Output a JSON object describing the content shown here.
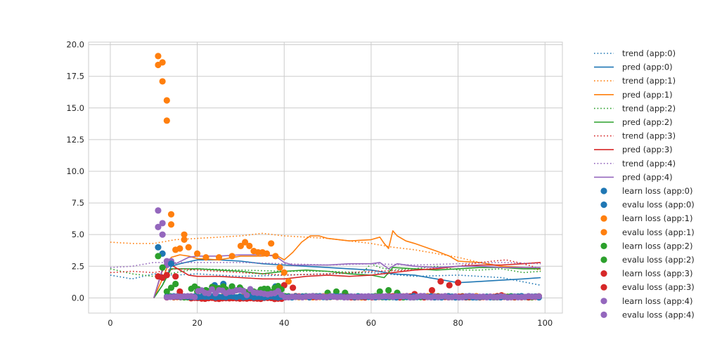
{
  "chart_data": {
    "type": "line",
    "title": "",
    "xlabel": "",
    "ylabel": "",
    "xlim": [
      -5,
      104
    ],
    "ylim": [
      -1.2,
      20.2
    ],
    "x_ticks": [
      0,
      20,
      40,
      60,
      80,
      100
    ],
    "y_ticks": [
      0.0,
      2.5,
      5.0,
      7.5,
      10.0,
      12.5,
      15.0,
      17.5,
      20.0
    ],
    "x_tick_labels": [
      "0",
      "20",
      "40",
      "60",
      "80",
      "100"
    ],
    "y_tick_labels": [
      "0.0",
      "2.5",
      "5.0",
      "7.5",
      "10.0",
      "12.5",
      "15.0",
      "17.5",
      "20.0"
    ],
    "grid": true,
    "legend_placement": "outside-right",
    "colors": [
      "#1f77b4",
      "#ff7f0e",
      "#2ca02c",
      "#d62728",
      "#9467bd"
    ],
    "legend": [
      "trend (app:0)",
      "pred (app:0)",
      "trend (app:1)",
      "pred (app:1)",
      "trend (app:2)",
      "pred (app:2)",
      "trend (app:3)",
      "pred (app:3)",
      "trend (app:4)",
      "pred (app:4)",
      "learn loss (app:0)",
      "evalu loss (app:0)",
      "learn loss (app:1)",
      "evalu loss (app:1)",
      "learn loss (app:2)",
      "evalu loss (app:2)",
      "learn loss (app:3)",
      "evalu loss (app:3)",
      "learn loss (app:4)",
      "evalu loss (app:4)"
    ],
    "series": [
      {
        "kind": "trend",
        "color": "#1f77b4",
        "x": [
          0,
          5,
          10,
          15,
          20,
          30,
          40,
          50,
          60,
          70,
          80,
          90,
          99
        ],
        "y": [
          1.8,
          1.5,
          1.9,
          1.8,
          1.9,
          1.7,
          1.8,
          1.9,
          2.0,
          1.7,
          1.8,
          1.6,
          1.0
        ]
      },
      {
        "kind": "pred",
        "color": "#1f77b4",
        "x": [
          10,
          12,
          14,
          16,
          20,
          25,
          30,
          35,
          40,
          45,
          50,
          55,
          60,
          65,
          70,
          75,
          80,
          85,
          90,
          95,
          99
        ],
        "y": [
          0.0,
          1.0,
          2.5,
          2.7,
          3.0,
          3.0,
          2.9,
          2.7,
          2.6,
          2.5,
          2.4,
          2.3,
          2.2,
          1.9,
          1.8,
          1.5,
          1.2,
          1.3,
          1.4,
          1.5,
          1.6
        ]
      },
      {
        "kind": "trend",
        "color": "#ff7f0e",
        "x": [
          0,
          5,
          10,
          15,
          20,
          25,
          30,
          35,
          40,
          45,
          50,
          55,
          60,
          65,
          70,
          75,
          80,
          85,
          90,
          95,
          99
        ],
        "y": [
          4.4,
          4.3,
          4.3,
          4.6,
          4.7,
          4.8,
          4.9,
          5.1,
          4.9,
          4.8,
          4.7,
          4.5,
          4.3,
          4.0,
          3.8,
          3.5,
          3.2,
          2.8,
          2.5,
          2.4,
          2.2
        ]
      },
      {
        "kind": "pred",
        "color": "#ff7f0e",
        "x": [
          10,
          12,
          14,
          16,
          18,
          20,
          25,
          30,
          35,
          38,
          40,
          42,
          44,
          46,
          48,
          50,
          55,
          60,
          62,
          63,
          64,
          65,
          66,
          68,
          70,
          75,
          78,
          80,
          85,
          90,
          95,
          99
        ],
        "y": [
          0.0,
          1.5,
          3.2,
          3.4,
          3.3,
          3.1,
          3.0,
          3.3,
          3.3,
          3.4,
          3.0,
          3.6,
          4.4,
          4.9,
          4.9,
          4.7,
          4.5,
          4.6,
          4.8,
          4.3,
          3.9,
          5.3,
          4.9,
          4.5,
          4.3,
          3.7,
          3.3,
          2.9,
          2.8,
          2.5,
          2.4,
          2.3
        ]
      },
      {
        "kind": "trend",
        "color": "#2ca02c",
        "x": [
          0,
          5,
          10,
          15,
          20,
          30,
          40,
          50,
          58,
          60,
          62,
          65,
          70,
          75,
          80,
          85,
          90,
          95,
          99
        ],
        "y": [
          2.3,
          1.9,
          1.7,
          2.0,
          2.3,
          2.2,
          2.1,
          2.1,
          2.0,
          2.7,
          2.4,
          2.2,
          2.3,
          2.5,
          2.2,
          2.2,
          2.3,
          2.0,
          2.1
        ]
      },
      {
        "kind": "pred",
        "color": "#2ca02c",
        "x": [
          10,
          12,
          14,
          16,
          20,
          25,
          30,
          35,
          40,
          45,
          50,
          55,
          60,
          63,
          65,
          70,
          75,
          80,
          85,
          90,
          95,
          99
        ],
        "y": [
          0.0,
          1.0,
          2.3,
          2.3,
          2.3,
          2.2,
          2.1,
          1.9,
          2.1,
          2.2,
          2.1,
          1.9,
          1.8,
          1.6,
          2.4,
          2.3,
          2.2,
          2.3,
          2.4,
          2.4,
          2.3,
          2.3
        ]
      },
      {
        "kind": "trend",
        "color": "#d62728",
        "x": [
          0,
          5,
          10,
          15,
          20,
          30,
          40,
          50,
          60,
          70,
          80,
          85,
          88,
          91,
          95,
          99
        ],
        "y": [
          2.0,
          2.1,
          2.0,
          2.3,
          2.2,
          2.0,
          1.8,
          1.9,
          2.1,
          2.2,
          2.5,
          2.8,
          2.9,
          3.0,
          2.7,
          2.3
        ]
      },
      {
        "kind": "pred",
        "color": "#d62728",
        "x": [
          10,
          12,
          13,
          14,
          16,
          18,
          20,
          25,
          30,
          35,
          40,
          45,
          50,
          55,
          60,
          65,
          70,
          75,
          80,
          85,
          90,
          95,
          99
        ],
        "y": [
          0.0,
          2.2,
          2.9,
          2.6,
          2.2,
          1.8,
          1.7,
          1.7,
          1.6,
          1.5,
          1.5,
          1.7,
          1.8,
          1.7,
          1.8,
          2.0,
          2.2,
          2.3,
          2.5,
          2.6,
          2.6,
          2.7,
          2.8
        ]
      },
      {
        "kind": "trend",
        "color": "#9467bd",
        "x": [
          0,
          5,
          10,
          15,
          20,
          30,
          40,
          50,
          60,
          70,
          80,
          90,
          99
        ],
        "y": [
          2.4,
          2.5,
          2.8,
          2.8,
          2.8,
          2.8,
          2.7,
          2.6,
          2.7,
          2.6,
          2.7,
          2.8,
          2.7
        ]
      },
      {
        "kind": "pred",
        "color": "#9467bd",
        "x": [
          10,
          12,
          13,
          15,
          18,
          20,
          25,
          30,
          35,
          38,
          40,
          42,
          45,
          50,
          55,
          60,
          62,
          64,
          66,
          70,
          75,
          80,
          85,
          90,
          95,
          99
        ],
        "y": [
          0.0,
          2.3,
          3.0,
          2.7,
          3.2,
          3.3,
          3.3,
          3.4,
          3.4,
          3.3,
          2.8,
          2.6,
          2.6,
          2.6,
          2.7,
          2.7,
          2.8,
          2.3,
          2.7,
          2.5,
          2.4,
          2.5,
          2.5,
          2.4,
          2.4,
          2.4
        ]
      }
    ],
    "scatter": [
      {
        "color": "#ff7f0e",
        "x": [
          11,
          11,
          12,
          12,
          13,
          13,
          14,
          14,
          15,
          16,
          17,
          17,
          18,
          20,
          22,
          25,
          28,
          30,
          31,
          32,
          33,
          34,
          35,
          36,
          37,
          38,
          39,
          40,
          41
        ],
        "y": [
          19.1,
          18.4,
          18.6,
          17.1,
          15.6,
          14.0,
          6.6,
          5.8,
          3.8,
          3.9,
          4.6,
          5.0,
          4.0,
          3.5,
          3.2,
          3.2,
          3.3,
          4.1,
          4.4,
          4.1,
          3.7,
          3.6,
          3.6,
          3.5,
          4.3,
          3.3,
          2.4,
          2.0,
          1.3
        ]
      },
      {
        "color": "#9467bd",
        "x": [
          11,
          11,
          12,
          12,
          13,
          13,
          14
        ],
        "y": [
          6.9,
          5.6,
          5.9,
          5.0,
          2.9,
          2.6,
          2.9
        ]
      },
      {
        "color": "#1f77b4",
        "x": [
          11,
          12,
          14,
          22,
          24,
          26,
          28,
          30,
          38
        ],
        "y": [
          4.0,
          3.5,
          2.7,
          0.6,
          1.0,
          1.1,
          0.9,
          0.7,
          0.9
        ]
      },
      {
        "color": "#2ca02c",
        "x": [
          11,
          12,
          13,
          14,
          15,
          20,
          22,
          24,
          26,
          28,
          30,
          50,
          52,
          54,
          62,
          64,
          66,
          70
        ],
        "y": [
          3.3,
          2.4,
          0.5,
          0.8,
          1.1,
          0.5,
          0.6,
          0.8,
          0.9,
          0.9,
          0.7,
          0.4,
          0.5,
          0.4,
          0.5,
          0.6,
          0.4,
          0.2
        ]
      },
      {
        "color": "#d62728",
        "x": [
          11,
          12,
          13,
          15,
          16,
          16,
          20,
          30,
          40,
          42,
          70,
          74,
          76,
          78,
          80,
          90
        ],
        "y": [
          1.7,
          1.6,
          1.8,
          1.7,
          0.5,
          0.3,
          0.0,
          0.0,
          1.0,
          0.8,
          0.3,
          0.6,
          1.3,
          1.0,
          1.2,
          0.2
        ]
      }
    ]
  }
}
